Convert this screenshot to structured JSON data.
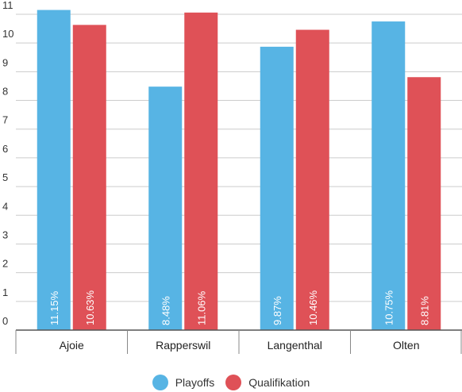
{
  "chart_data": {
    "type": "bar",
    "categories": [
      "Ajoie",
      "Rapperswil",
      "Langenthal",
      "Olten"
    ],
    "series": [
      {
        "name": "Playoffs",
        "values": [
          11.15,
          8.48,
          9.87,
          10.75
        ],
        "labels": [
          "11.15%",
          "8.48%",
          "9.87%",
          "10.75%"
        ],
        "color": "#57b4e4"
      },
      {
        "name": "Qualifikation",
        "values": [
          10.63,
          11.06,
          10.46,
          8.81
        ],
        "labels": [
          "10.63%",
          "11.06%",
          "10.46%",
          "8.81%"
        ],
        "color": "#df5157"
      }
    ],
    "yticks": [
      0,
      1,
      2,
      3,
      4,
      5,
      6,
      7,
      8,
      9,
      10,
      11
    ],
    "ylim": [
      0,
      11
    ],
    "grid": true,
    "legend_position": "bottom"
  }
}
